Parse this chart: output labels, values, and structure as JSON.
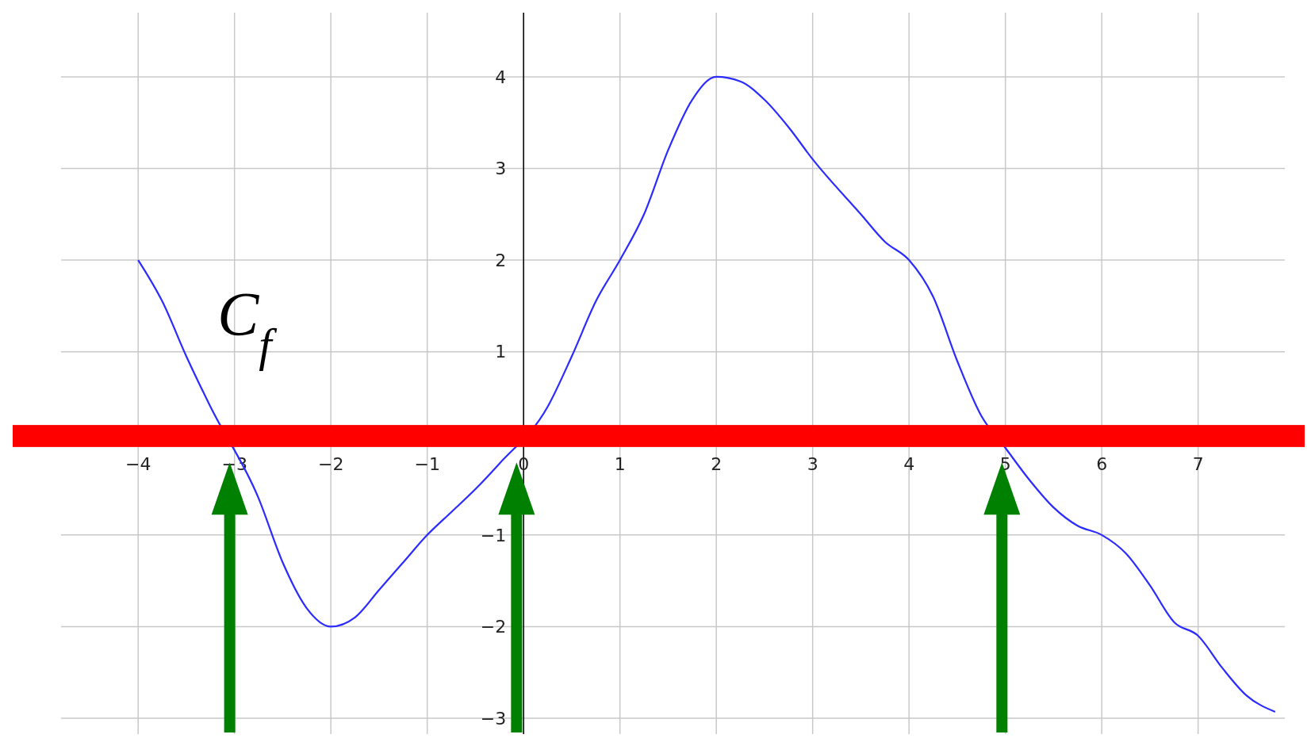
{
  "chart_data": {
    "type": "line",
    "x": [
      -4,
      -3.75,
      -3.5,
      -3.25,
      -2.75,
      -2.5,
      -2.25,
      -2,
      -1.75,
      -1.5,
      -1.25,
      -1,
      -0.75,
      -0.5,
      -0.25,
      0.25,
      0.5,
      0.75,
      1,
      1.25,
      1.5,
      1.75,
      2,
      2.25,
      2.5,
      2.75,
      3,
      3.5,
      3.75,
      4,
      4.25,
      4.5,
      4.75,
      5,
      5.25,
      5.5,
      5.75,
      6,
      6.25,
      6.5,
      6.75,
      7,
      7.25,
      7.5,
      7.8
    ],
    "series": [
      {
        "color": "#2b2bff",
        "values": [
          2,
          1.55,
          0.95,
          0.4,
          -0.6,
          -1.3,
          -1.8,
          -2,
          -1.9,
          -1.6,
          -1.3,
          -1,
          -0.75,
          -0.5,
          -0.22,
          0.4,
          0.95,
          1.55,
          2,
          2.5,
          3.2,
          3.75,
          4,
          3.95,
          3.75,
          3.45,
          3.1,
          2.5,
          2.2,
          2,
          1.6,
          0.9,
          0.3,
          -0.05,
          -0.4,
          -0.7,
          -0.9,
          -1,
          -1.2,
          -1.55,
          -1.95,
          -2.1,
          -2.45,
          -2.75,
          -2.93
        ]
      }
    ],
    "xlim": [
      -4.8,
      7.9
    ],
    "ylim": [
      -3,
      4.7
    ],
    "xticks": [
      -4,
      -3,
      -2,
      -1,
      0,
      1,
      2,
      3,
      4,
      5,
      6,
      7
    ],
    "yticks": [
      -3,
      -2,
      -1,
      1,
      2,
      3,
      4
    ],
    "grid": true,
    "line_style": "solid",
    "bands": [
      {
        "axis": "y",
        "from": -0.04,
        "to": 0.2,
        "color": "#ff0000"
      }
    ],
    "annotations": [
      "C$_{f}$"
    ]
  }
}
